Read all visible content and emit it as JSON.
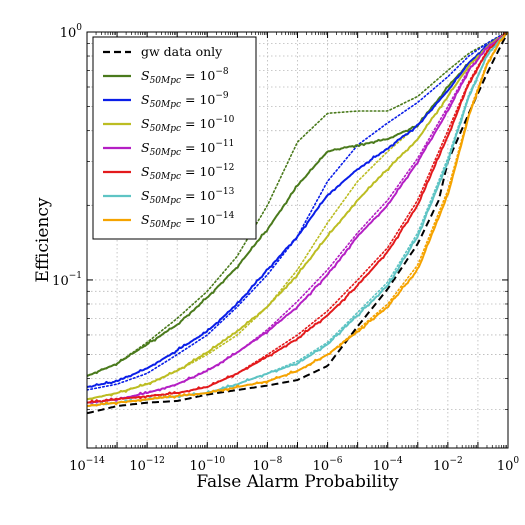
{
  "chart_data": {
    "type": "line",
    "title": "",
    "xlabel": "False Alarm Probability",
    "ylabel": "Efficiency",
    "x_scale": "log",
    "y_scale": "log",
    "xlim": [
      1e-14,
      1
    ],
    "ylim": [
      0.021,
      1
    ],
    "grid": true,
    "legend_placement": "top-left",
    "x_ticks": [
      {
        "value": 1e-14,
        "base": "10",
        "exp": "−14"
      },
      {
        "value": 1e-12,
        "base": "10",
        "exp": "−12"
      },
      {
        "value": 1e-10,
        "base": "10",
        "exp": "−10"
      },
      {
        "value": 1e-08,
        "base": "10",
        "exp": "−8"
      },
      {
        "value": 1e-06,
        "base": "10",
        "exp": "−6"
      },
      {
        "value": 0.0001,
        "base": "10",
        "exp": "−4"
      },
      {
        "value": 0.01,
        "base": "10",
        "exp": "−2"
      },
      {
        "value": 1,
        "base": "10",
        "exp": "0"
      }
    ],
    "y_ticks": [
      {
        "value": 0.1,
        "base": "10",
        "exp": "−1"
      },
      {
        "value": 1,
        "base": "10",
        "exp": "0"
      }
    ],
    "series": [
      {
        "name": "gw data only",
        "legend_sym": "",
        "legend_sub": "",
        "legend_exp": "",
        "color": "#000000",
        "style": "dashed",
        "x": [
          1e-14,
          1e-13,
          1e-12,
          1e-11,
          1e-10,
          1e-09,
          1e-08,
          1e-07,
          1e-06,
          1e-05,
          0.0001,
          0.001,
          0.005,
          0.01,
          0.05,
          0.2,
          0.5,
          1
        ],
        "y": [
          0.029,
          0.031,
          0.032,
          0.0325,
          0.0345,
          0.036,
          0.0375,
          0.0395,
          0.045,
          0.065,
          0.092,
          0.14,
          0.21,
          0.3,
          0.47,
          0.68,
          0.85,
          1.0
        ],
        "dotted_y": null
      },
      {
        "name": "S_50Mpc = 10^-8",
        "legend_sym": "S",
        "legend_sub": "50Mpc",
        "legend_exp": "−8",
        "color": "#4a7a1c",
        "style": "solid",
        "x": [
          1e-14,
          1e-13,
          1e-12,
          1e-11,
          1e-10,
          1e-09,
          1e-08,
          1e-07,
          1e-06,
          1e-05,
          0.0001,
          0.001,
          0.01,
          0.05,
          0.2,
          0.5,
          1
        ],
        "y": [
          0.041,
          0.046,
          0.055,
          0.066,
          0.085,
          0.113,
          0.16,
          0.24,
          0.33,
          0.35,
          0.37,
          0.42,
          0.6,
          0.75,
          0.88,
          0.95,
          1.0
        ],
        "dotted_y": [
          0.041,
          0.046,
          0.056,
          0.07,
          0.09,
          0.125,
          0.2,
          0.36,
          0.47,
          0.48,
          0.48,
          0.55,
          0.7,
          0.82,
          0.9,
          0.96,
          1.0
        ]
      },
      {
        "name": "S_50Mpc = 10^-9",
        "legend_sym": "S",
        "legend_sub": "50Mpc",
        "legend_exp": "−9",
        "color": "#0a1ee8",
        "style": "solid",
        "x": [
          1e-14,
          1e-13,
          1e-12,
          1e-11,
          1e-10,
          1e-09,
          1e-08,
          1e-07,
          1e-06,
          1e-05,
          0.0001,
          0.001,
          0.01,
          0.05,
          0.2,
          0.5,
          1
        ],
        "y": [
          0.037,
          0.039,
          0.044,
          0.052,
          0.062,
          0.08,
          0.11,
          0.15,
          0.22,
          0.28,
          0.34,
          0.42,
          0.58,
          0.75,
          0.88,
          0.95,
          1.0
        ],
        "dotted_y": [
          0.036,
          0.038,
          0.042,
          0.05,
          0.06,
          0.078,
          0.105,
          0.15,
          0.25,
          0.35,
          0.43,
          0.52,
          0.66,
          0.8,
          0.9,
          0.96,
          1.0
        ]
      },
      {
        "name": "S_50Mpc = 10^-10",
        "legend_sym": "S",
        "legend_sub": "50Mpc",
        "legend_exp": "−10",
        "color": "#bcbd22",
        "style": "solid",
        "x": [
          1e-14,
          1e-13,
          1e-12,
          1e-11,
          1e-10,
          1e-09,
          1e-08,
          1e-07,
          1e-06,
          1e-05,
          0.0001,
          0.001,
          0.01,
          0.05,
          0.2,
          0.5,
          1
        ],
        "y": [
          0.033,
          0.035,
          0.038,
          0.043,
          0.051,
          0.062,
          0.078,
          0.105,
          0.15,
          0.21,
          0.28,
          0.37,
          0.55,
          0.73,
          0.87,
          0.95,
          1.0
        ],
        "dotted_y": [
          0.033,
          0.035,
          0.038,
          0.043,
          0.05,
          0.06,
          0.078,
          0.11,
          0.17,
          0.25,
          0.33,
          0.42,
          0.58,
          0.75,
          0.88,
          0.95,
          1.0
        ]
      },
      {
        "name": "S_50Mpc = 10^-11",
        "legend_sym": "S",
        "legend_sub": "50Mpc",
        "legend_exp": "−11",
        "color": "#b41fc4",
        "style": "solid",
        "x": [
          1e-14,
          1e-13,
          1e-12,
          1e-11,
          1e-10,
          1e-09,
          1e-08,
          1e-07,
          1e-06,
          1e-05,
          0.0001,
          0.001,
          0.01,
          0.05,
          0.2,
          0.5,
          1
        ],
        "y": [
          0.032,
          0.033,
          0.035,
          0.038,
          0.043,
          0.051,
          0.062,
          0.078,
          0.105,
          0.15,
          0.2,
          0.3,
          0.48,
          0.7,
          0.86,
          0.94,
          1.0
        ],
        "dotted_y": [
          0.032,
          0.033,
          0.035,
          0.038,
          0.043,
          0.051,
          0.063,
          0.082,
          0.11,
          0.155,
          0.21,
          0.31,
          0.5,
          0.71,
          0.86,
          0.94,
          1.0
        ]
      },
      {
        "name": "S_50Mpc = 10^-12",
        "legend_sym": "S",
        "legend_sub": "50Mpc",
        "legend_exp": "−12",
        "color": "#e31a1c",
        "style": "solid",
        "x": [
          1e-14,
          1e-13,
          1e-12,
          1e-11,
          1e-10,
          1e-09,
          1e-08,
          1e-07,
          1e-06,
          1e-05,
          0.0001,
          0.001,
          0.01,
          0.05,
          0.2,
          0.5,
          1
        ],
        "y": [
          0.032,
          0.033,
          0.034,
          0.035,
          0.037,
          0.042,
          0.049,
          0.058,
          0.072,
          0.095,
          0.13,
          0.2,
          0.38,
          0.62,
          0.83,
          0.93,
          1.0
        ],
        "dotted_y": [
          0.032,
          0.033,
          0.034,
          0.035,
          0.037,
          0.042,
          0.05,
          0.06,
          0.075,
          0.1,
          0.135,
          0.21,
          0.4,
          0.63,
          0.84,
          0.94,
          1.0
        ]
      },
      {
        "name": "S_50Mpc = 10^-13",
        "legend_sym": "S",
        "legend_sub": "50Mpc",
        "legend_exp": "−13",
        "color": "#5ec4c4",
        "style": "solid",
        "x": [
          1e-14,
          1e-13,
          1e-12,
          1e-11,
          1e-10,
          1e-09,
          1e-08,
          1e-07,
          1e-06,
          1e-05,
          0.0001,
          0.001,
          0.01,
          0.05,
          0.2,
          0.5,
          1
        ],
        "y": [
          0.031,
          0.032,
          0.033,
          0.034,
          0.035,
          0.038,
          0.042,
          0.046,
          0.055,
          0.072,
          0.095,
          0.15,
          0.3,
          0.55,
          0.8,
          0.92,
          1.0
        ],
        "dotted_y": [
          0.031,
          0.032,
          0.033,
          0.034,
          0.035,
          0.038,
          0.042,
          0.047,
          0.056,
          0.074,
          0.098,
          0.155,
          0.31,
          0.56,
          0.8,
          0.92,
          1.0
        ]
      },
      {
        "name": "S_50Mpc = 10^-14",
        "legend_sym": "S",
        "legend_sub": "50Mpc",
        "legend_exp": "−14",
        "color": "#f5a300",
        "style": "solid",
        "x": [
          1e-14,
          1e-13,
          1e-12,
          1e-11,
          1e-10,
          1e-09,
          1e-08,
          1e-07,
          1e-06,
          1e-05,
          0.0001,
          0.001,
          0.01,
          0.05,
          0.2,
          0.5,
          1
        ],
        "y": [
          0.031,
          0.032,
          0.033,
          0.034,
          0.035,
          0.037,
          0.039,
          0.043,
          0.05,
          0.062,
          0.078,
          0.11,
          0.22,
          0.46,
          0.74,
          0.9,
          1.0
        ],
        "dotted_y": [
          0.031,
          0.032,
          0.033,
          0.034,
          0.035,
          0.037,
          0.039,
          0.043,
          0.05,
          0.063,
          0.08,
          0.115,
          0.23,
          0.47,
          0.75,
          0.9,
          1.0
        ]
      }
    ]
  }
}
